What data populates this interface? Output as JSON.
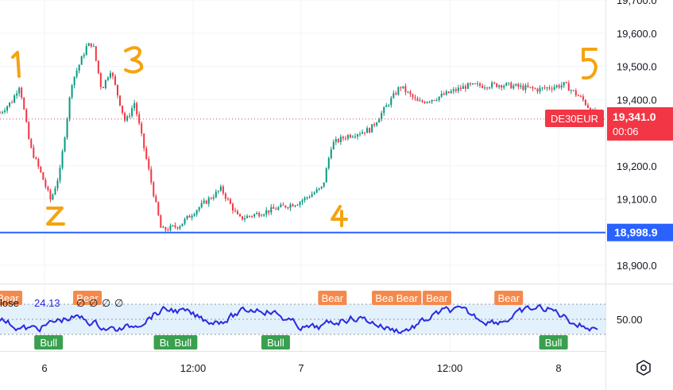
{
  "chart_data": [
    {
      "type": "candlestick",
      "symbol": "DE30EUR",
      "yticks": [
        "19,700.0",
        "19,600.0",
        "19,500.0",
        "19,400.0",
        "19,200.0",
        "19,100.0",
        "18,900.0"
      ],
      "ylim": [
        18850,
        19700
      ],
      "xticks": [
        "6",
        "12:00",
        "7",
        "12:00",
        "8"
      ],
      "last_price": {
        "label": "19,341.0",
        "value": 19341,
        "countdown": "00:06",
        "color": "#f23645"
      },
      "hline": {
        "label": "18,998.9",
        "value": 18998.9,
        "color": "#2962ff"
      },
      "wave_marks": [
        "1",
        "2",
        "3",
        "4",
        "5"
      ],
      "price_path": [
        {
          "t": 0,
          "p": 19360
        },
        {
          "t": 0.02,
          "p": 19395
        },
        {
          "t": 0.033,
          "p": 19445
        },
        {
          "t": 0.05,
          "p": 19260
        },
        {
          "t": 0.07,
          "p": 19170
        },
        {
          "t": 0.085,
          "p": 19095
        },
        {
          "t": 0.1,
          "p": 19180
        },
        {
          "t": 0.12,
          "p": 19450
        },
        {
          "t": 0.145,
          "p": 19560
        },
        {
          "t": 0.155,
          "p": 19570
        },
        {
          "t": 0.17,
          "p": 19430
        },
        {
          "t": 0.185,
          "p": 19490
        },
        {
          "t": 0.21,
          "p": 19330
        },
        {
          "t": 0.225,
          "p": 19390
        },
        {
          "t": 0.245,
          "p": 19220
        },
        {
          "t": 0.27,
          "p": 19005
        },
        {
          "t": 0.3,
          "p": 19020
        },
        {
          "t": 0.33,
          "p": 19070
        },
        {
          "t": 0.37,
          "p": 19130
        },
        {
          "t": 0.4,
          "p": 19040
        },
        {
          "t": 0.45,
          "p": 19065
        },
        {
          "t": 0.5,
          "p": 19090
        },
        {
          "t": 0.54,
          "p": 19135
        },
        {
          "t": 0.555,
          "p": 19265
        },
        {
          "t": 0.58,
          "p": 19290
        },
        {
          "t": 0.62,
          "p": 19310
        },
        {
          "t": 0.67,
          "p": 19440
        },
        {
          "t": 0.7,
          "p": 19390
        },
        {
          "t": 0.73,
          "p": 19405
        },
        {
          "t": 0.78,
          "p": 19440
        },
        {
          "t": 0.84,
          "p": 19445
        },
        {
          "t": 0.9,
          "p": 19430
        },
        {
          "t": 0.945,
          "p": 19445
        },
        {
          "t": 0.975,
          "p": 19400
        },
        {
          "t": 1.0,
          "p": 19341
        }
      ]
    },
    {
      "type": "line",
      "header_label": "lose",
      "value_label": "24.13",
      "extra_values": [
        "∅",
        "∅",
        "∅",
        "∅"
      ],
      "ytick": "50.00",
      "line_color": "#2a2ae0",
      "band_color": "#e3f1fc",
      "signals": [
        {
          "label": "Bear",
          "t": 0.012
        },
        {
          "label": "Bear",
          "t": 0.145
        },
        {
          "label": "Bear",
          "t": 0.555
        },
        {
          "label": "Bear",
          "t": 0.645
        },
        {
          "label": "Bear",
          "t": 0.68
        },
        {
          "label": "Bear",
          "t": 0.73
        },
        {
          "label": "Bear",
          "t": 0.85
        },
        {
          "label": "Bull",
          "t": 0.08
        },
        {
          "label": "Bull",
          "t": 0.28
        },
        {
          "label": "Bull",
          "t": 0.305
        },
        {
          "label": "Bull",
          "t": 0.46
        },
        {
          "label": "Bull",
          "t": 0.925
        }
      ]
    }
  ],
  "colors": {
    "bull": "#089981",
    "bear": "#f23645",
    "bull_tag": "#3aa04f",
    "bear_tag": "#f5894c",
    "marker": "#f5a30f"
  },
  "icons": {
    "settings": "settings-icon"
  }
}
